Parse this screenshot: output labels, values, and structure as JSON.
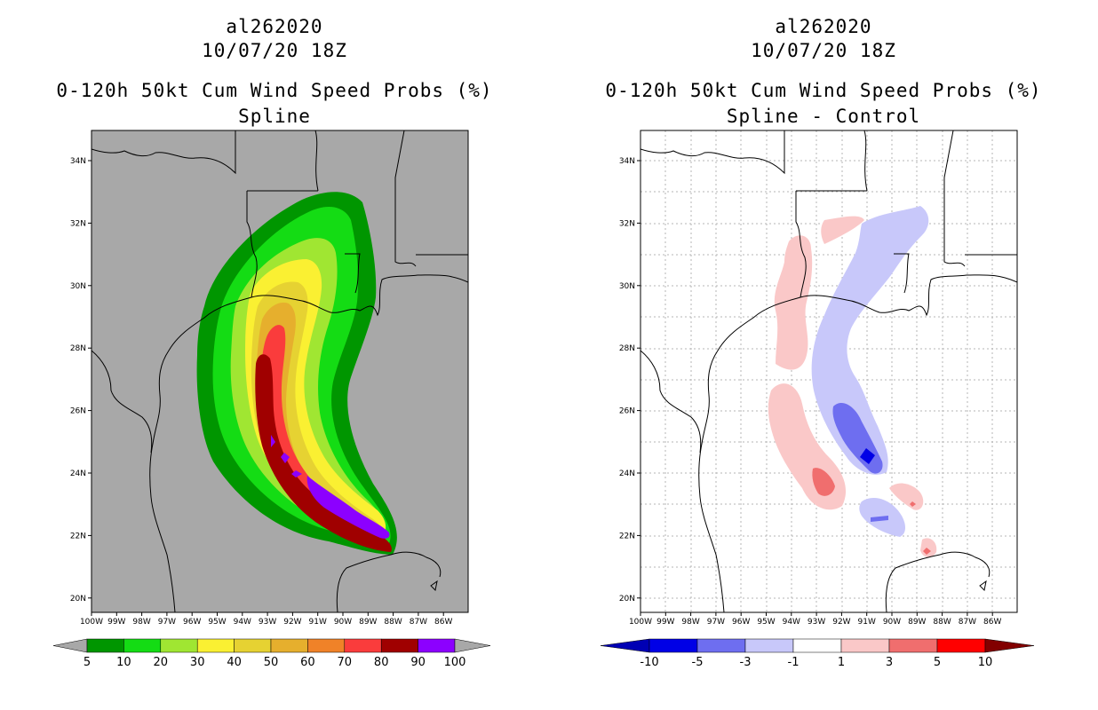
{
  "left": {
    "storm_id": "al262020",
    "datetime": "10/07/20 18Z",
    "product": "0-120h 50kt Cum Wind Speed Probs (%)",
    "variant": "Spline",
    "colorbar": {
      "colors": [
        "#009600",
        "#14dc14",
        "#a0e632",
        "#faf032",
        "#e6d232",
        "#e6af2d",
        "#f08228",
        "#fa3c3c",
        "#a00000",
        "#8c00ff"
      ],
      "labels": [
        "5",
        "10",
        "20",
        "30",
        "40",
        "50",
        "60",
        "70",
        "80",
        "90",
        "100"
      ]
    }
  },
  "right": {
    "storm_id": "al262020",
    "datetime": "10/07/20 18Z",
    "product": "0-120h 50kt Cum Wind Speed Probs (%)",
    "variant": "Spline - Control",
    "colorbar": {
      "colors": [
        "#0000e6",
        "#6e6ef0",
        "#c8c8fa",
        "#ffffff",
        "#fac8c8",
        "#f06e6e",
        "#ff0000"
      ],
      "end_colors": [
        "#0000b4",
        "#820000"
      ],
      "labels": [
        "-10",
        "-5",
        "-3",
        "-1",
        "1",
        "3",
        "5",
        "10"
      ]
    }
  },
  "map_axes": {
    "lon_labels": [
      "100W",
      "99W",
      "98W",
      "97W",
      "96W",
      "95W",
      "94W",
      "93W",
      "92W",
      "91W",
      "90W",
      "89W",
      "88W",
      "87W",
      "86W"
    ],
    "lat_labels": [
      "34N",
      "32N",
      "30N",
      "28N",
      "26N",
      "24N",
      "22N",
      "20N"
    ]
  }
}
